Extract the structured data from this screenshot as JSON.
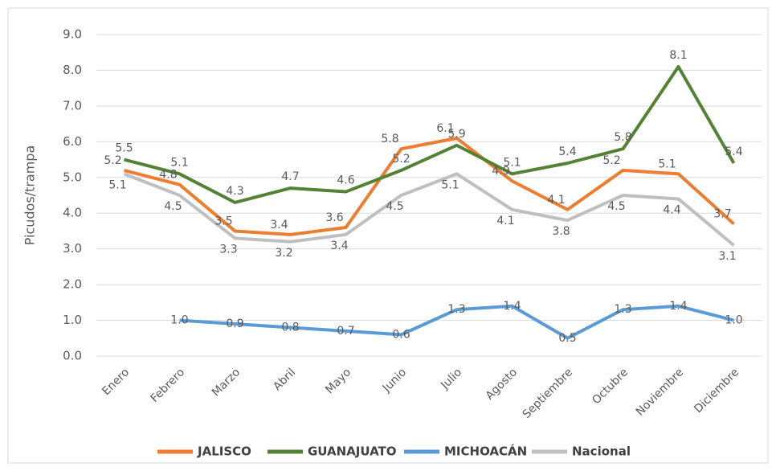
{
  "chart_data": {
    "type": "line",
    "y_label": "Picudos/trampa",
    "categories": [
      "Enero",
      "Febrero",
      "Marzo",
      "Abril",
      "Mayo",
      "Junio",
      "Julio",
      "Agosto",
      "Septiembre",
      "Octubre",
      "Noviembre",
      "Diciembre"
    ],
    "series": [
      {
        "name": "JALISCO",
        "color": "#ed7d31",
        "values": [
          5.2,
          4.8,
          3.5,
          3.4,
          3.6,
          5.8,
          6.1,
          4.9,
          4.1,
          5.2,
          5.1,
          3.7
        ]
      },
      {
        "name": "GUANAJUATO",
        "color": "#548235",
        "values": [
          5.5,
          5.1,
          4.3,
          4.7,
          4.6,
          5.2,
          5.9,
          5.1,
          5.4,
          5.8,
          8.1,
          5.4
        ]
      },
      {
        "name": "MICHOACÁN",
        "color": "#5b9bd5",
        "values": [
          null,
          1,
          0.9,
          0.8,
          0.7,
          0.6,
          1.3,
          1.4,
          0.5,
          1.3,
          1.4,
          1
        ],
        "value_labels": [
          null,
          "1.0",
          "0.9",
          "0.8",
          "0.7",
          "0.6",
          "1.3",
          "1.4",
          "0.5",
          "1.3",
          "1.4",
          "1.0"
        ]
      },
      {
        "name": "Nacional",
        "color": "#bfbfbf",
        "values": [
          5.1,
          4.5,
          3.3,
          3.2,
          3.4,
          4.5,
          5.1,
          4.1,
          3.8,
          4.5,
          4.4,
          3.1
        ]
      }
    ],
    "ylim": [
      0,
      9
    ],
    "yticks": [
      {
        "value": 0,
        "label": "0.0"
      },
      {
        "value": 1,
        "label": "1.0"
      },
      {
        "value": 2,
        "label": "2.0"
      },
      {
        "value": 3,
        "label": "3.0"
      },
      {
        "value": 4,
        "label": "4.0"
      },
      {
        "value": 5,
        "label": "5.0"
      },
      {
        "value": 6,
        "label": "6.0"
      },
      {
        "value": 7,
        "label": "7.0"
      },
      {
        "value": 8,
        "label": "8.0"
      },
      {
        "value": 9,
        "label": "9.0"
      }
    ],
    "grid": true,
    "legend": "bottom"
  }
}
